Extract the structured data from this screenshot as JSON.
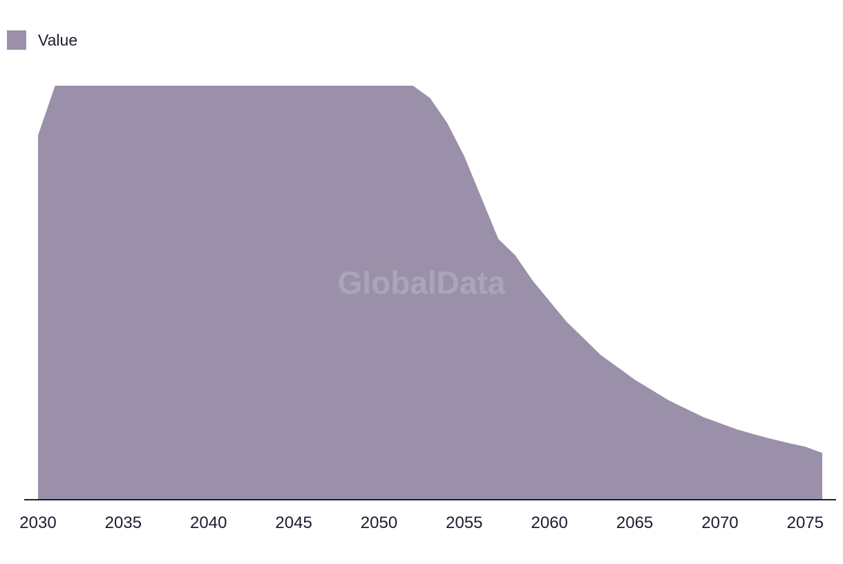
{
  "chart_data": {
    "type": "area",
    "legend": {
      "position": "top-left",
      "entries": [
        "Value"
      ]
    },
    "series": [
      {
        "name": "Value",
        "color": "#9a90aa",
        "x": [
          2030,
          2031,
          2032,
          2033,
          2034,
          2035,
          2036,
          2037,
          2038,
          2039,
          2040,
          2041,
          2042,
          2043,
          2044,
          2045,
          2046,
          2047,
          2048,
          2049,
          2050,
          2051,
          2052,
          2053,
          2054,
          2055,
          2056,
          2057,
          2058,
          2059,
          2060,
          2061,
          2062,
          2063,
          2064,
          2065,
          2066,
          2067,
          2068,
          2069,
          2070,
          2071,
          2072,
          2073,
          2074,
          2075,
          2076
        ],
        "values": [
          88,
          100,
          100,
          100,
          100,
          100,
          100,
          100,
          100,
          100,
          100,
          100,
          100,
          100,
          100,
          100,
          100,
          100,
          100,
          100,
          100,
          100,
          100,
          97,
          91,
          83,
          73,
          63,
          59,
          53,
          48,
          43,
          39,
          35,
          32,
          29,
          26.5,
          24,
          22,
          20,
          18.5,
          17,
          15.8,
          14.7,
          13.7,
          12.8,
          11.3
        ]
      }
    ],
    "xticks": [
      "2030",
      "2035",
      "2040",
      "2045",
      "2050",
      "2055",
      "2060",
      "2065",
      "2070",
      "2075"
    ],
    "xlim": [
      2030,
      2076
    ],
    "ylim": [
      0,
      100
    ],
    "grid": false,
    "axis_color": "#1e1b2e",
    "watermark": "GlobalData",
    "title": "",
    "xlabel": "",
    "ylabel": ""
  }
}
